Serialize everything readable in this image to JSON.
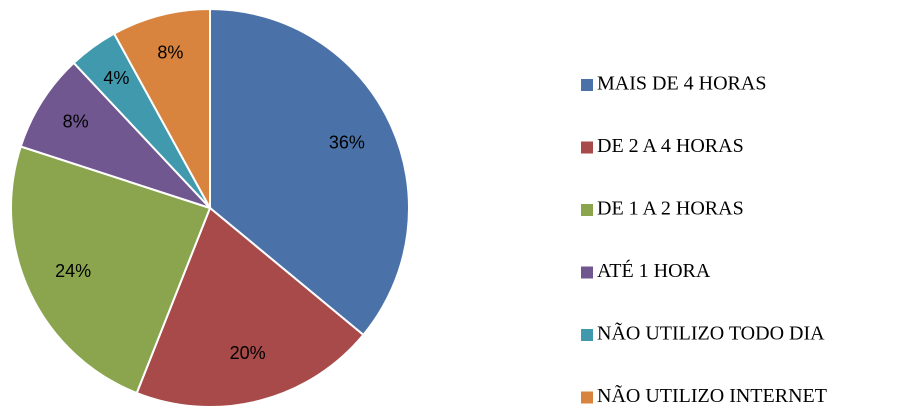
{
  "chart_data": {
    "type": "pie",
    "categories": [
      "MAIS DE 4 HORAS",
      "DE 2 A 4 HORAS",
      "DE 1 A 2 HORAS",
      "ATÉ 1 HORA",
      "NÃO UTILIZO TODO DIA",
      "NÃO UTILIZO INTERNET"
    ],
    "values": [
      36,
      20,
      24,
      8,
      4,
      8
    ],
    "value_labels": [
      "36%",
      "20%",
      "24%",
      "8%",
      "4%",
      "8%"
    ],
    "colors": [
      "#4a72a8",
      "#a84a4a",
      "#8aa54e",
      "#71578f",
      "#4199ae",
      "#d8843f"
    ],
    "legend": "right"
  }
}
